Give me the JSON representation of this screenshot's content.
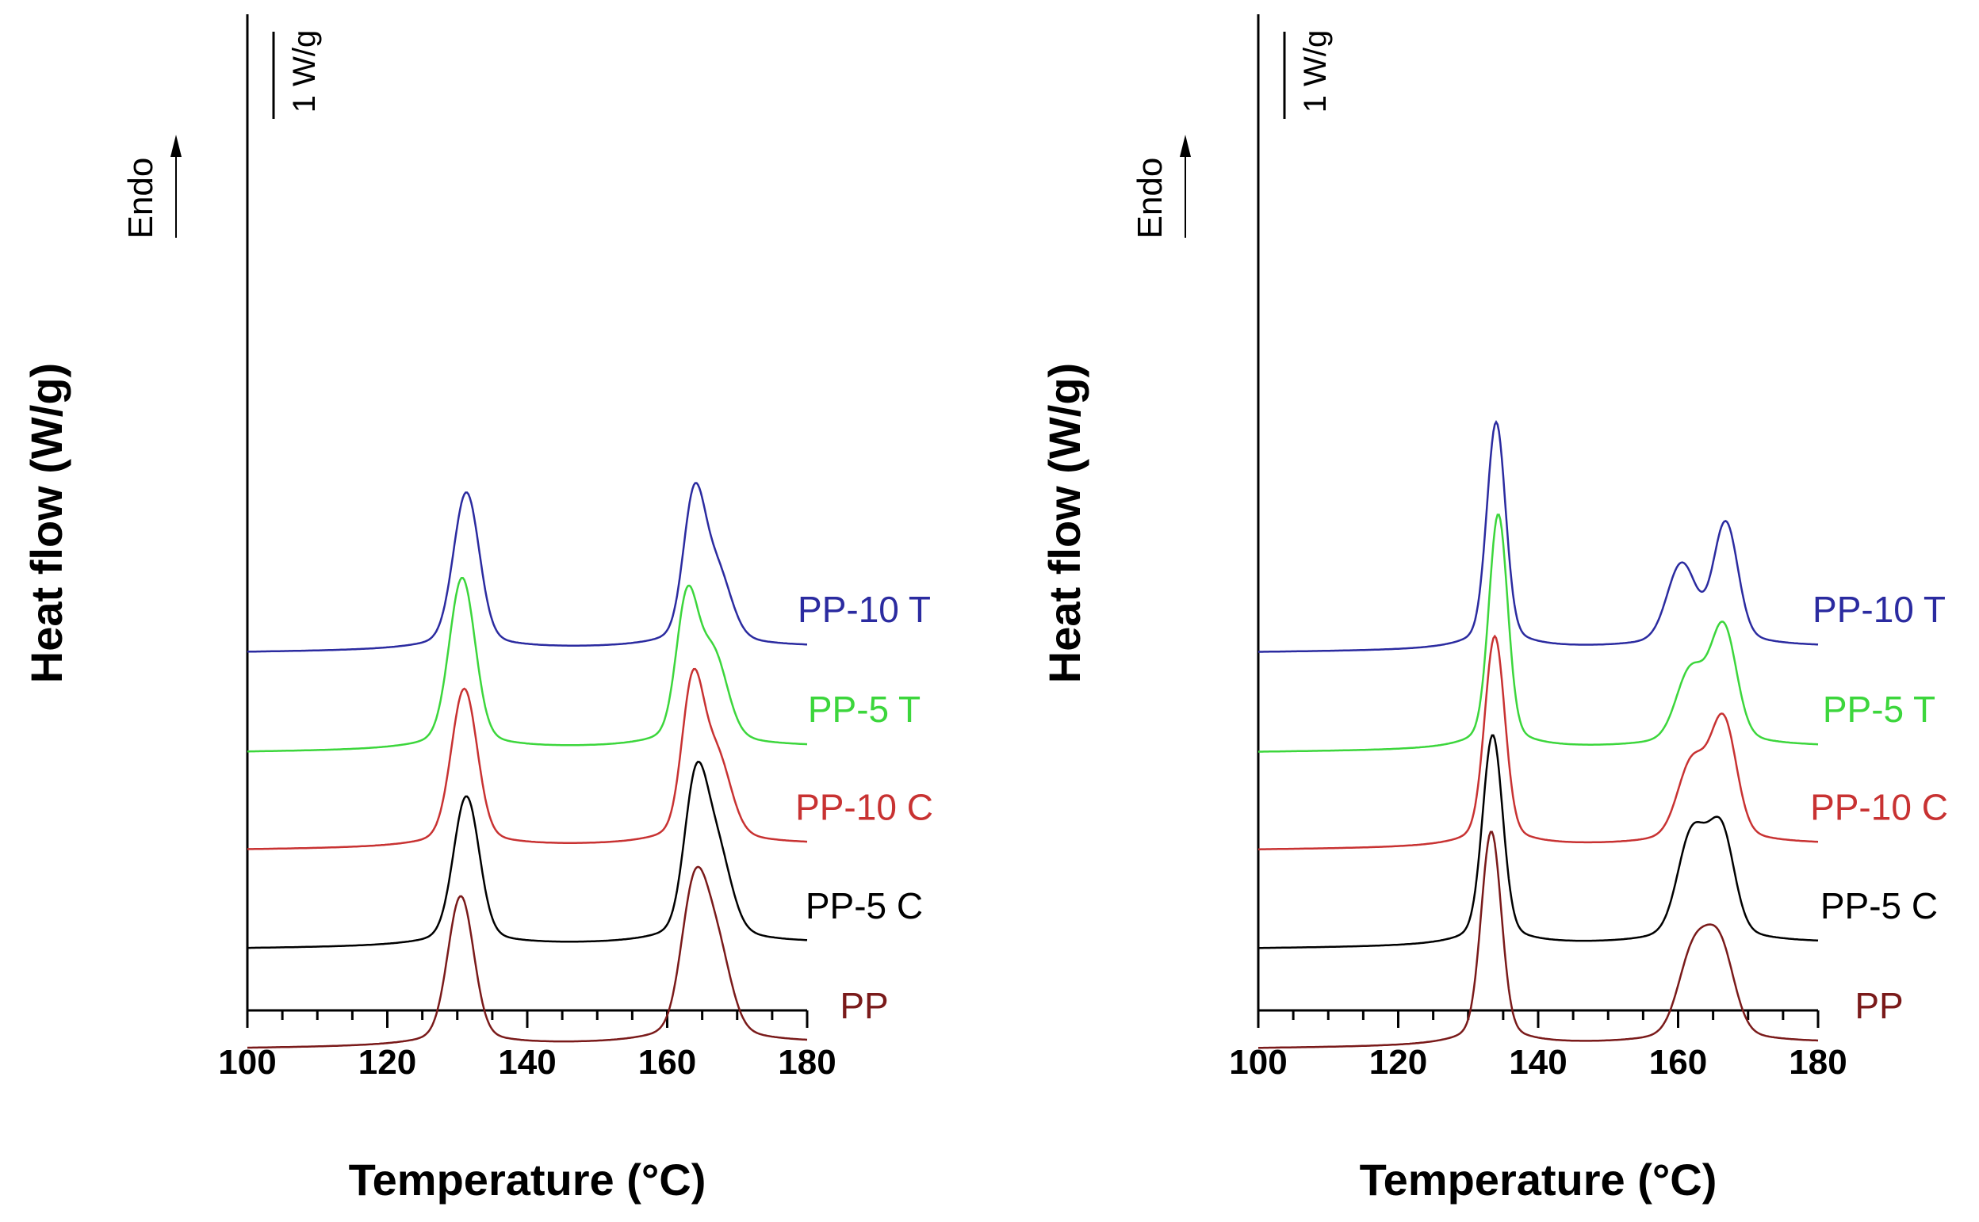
{
  "figure": {
    "endo_label": "Endo",
    "scale_label": "1 W/g"
  },
  "colors": {
    "PP-10 T": "#2b2ba0",
    "PP-5 T": "#3cd63c",
    "PP-10 C": "#c83232",
    "PP-5 C": "#000000",
    "PP": "#7a1a1a"
  },
  "chart_data": [
    {
      "type": "line",
      "panel": "left",
      "xlabel": "Temperature (°C)",
      "ylabel": "Heat flow (W/g)",
      "xlim": [
        100,
        180
      ],
      "xticks": [
        "100",
        "120",
        "140",
        "160",
        "180"
      ],
      "grid": false,
      "y_ticks_shown": false,
      "series": [
        {
          "name": "PP-10 T",
          "baseline": 5.62,
          "peaks": [
            {
              "t": 131.3,
              "h": 1.42,
              "w": 1.8
            },
            {
              "t": 163.8,
              "h": 1.25,
              "w": 1.5
            },
            {
              "t": 167.0,
              "h": 0.65,
              "w": 2.0
            }
          ]
        },
        {
          "name": "PP-5 T",
          "baseline": 4.72,
          "peaks": [
            {
              "t": 130.7,
              "h": 1.55,
              "w": 1.8
            },
            {
              "t": 162.8,
              "h": 1.25,
              "w": 1.5
            },
            {
              "t": 166.5,
              "h": 0.8,
              "w": 2.0
            }
          ]
        },
        {
          "name": "PP-10 C",
          "baseline": 3.84,
          "peaks": [
            {
              "t": 131.0,
              "h": 1.43,
              "w": 1.8
            },
            {
              "t": 163.6,
              "h": 1.35,
              "w": 1.5
            },
            {
              "t": 167.0,
              "h": 0.75,
              "w": 2.0
            }
          ]
        },
        {
          "name": "PP-5 C",
          "baseline": 2.95,
          "peaks": [
            {
              "t": 131.3,
              "h": 1.35,
              "w": 1.8
            },
            {
              "t": 164.0,
              "h": 1.3,
              "w": 1.6
            },
            {
              "t": 167.0,
              "h": 0.8,
              "w": 2.0
            }
          ]
        },
        {
          "name": "PP",
          "baseline": 2.05,
          "peaks": [
            {
              "t": 130.5,
              "h": 1.35,
              "w": 1.8
            },
            {
              "t": 163.8,
              "h": 1.28,
              "w": 1.8
            },
            {
              "t": 167.0,
              "h": 0.8,
              "w": 2.0
            }
          ]
        }
      ]
    },
    {
      "type": "line",
      "panel": "right",
      "xlabel": "Temperature (°C)",
      "ylabel": "Heat flow (W/g)",
      "xlim": [
        100,
        180
      ],
      "xticks": [
        "100",
        "120",
        "140",
        "160",
        "180"
      ],
      "grid": false,
      "y_ticks_shown": false,
      "series": [
        {
          "name": "PP-10 T",
          "baseline": 5.62,
          "peaks": [
            {
              "t": 134.0,
              "h": 2.05,
              "w": 1.3
            },
            {
              "t": 160.5,
              "h": 0.72,
              "w": 2.0
            },
            {
              "t": 166.8,
              "h": 1.1,
              "w": 1.7
            }
          ]
        },
        {
          "name": "PP-5 T",
          "baseline": 4.72,
          "peaks": [
            {
              "t": 134.3,
              "h": 2.12,
              "w": 1.3
            },
            {
              "t": 161.8,
              "h": 0.65,
              "w": 2.0
            },
            {
              "t": 166.5,
              "h": 1.05,
              "w": 1.8
            }
          ]
        },
        {
          "name": "PP-10 C",
          "baseline": 3.84,
          "peaks": [
            {
              "t": 133.8,
              "h": 1.9,
              "w": 1.4
            },
            {
              "t": 162.0,
              "h": 0.7,
              "w": 2.0
            },
            {
              "t": 166.5,
              "h": 1.08,
              "w": 1.8
            }
          ]
        },
        {
          "name": "PP-5 C",
          "baseline": 2.95,
          "peaks": [
            {
              "t": 133.5,
              "h": 1.9,
              "w": 1.4
            },
            {
              "t": 162.0,
              "h": 0.95,
              "w": 2.0
            },
            {
              "t": 166.2,
              "h": 0.95,
              "w": 1.8
            }
          ]
        },
        {
          "name": "PP",
          "baseline": 2.05,
          "peaks": [
            {
              "t": 133.3,
              "h": 1.93,
              "w": 1.4
            },
            {
              "t": 162.2,
              "h": 0.78,
              "w": 2.1
            },
            {
              "t": 166.0,
              "h": 0.8,
              "w": 2.0
            }
          ]
        }
      ]
    }
  ]
}
